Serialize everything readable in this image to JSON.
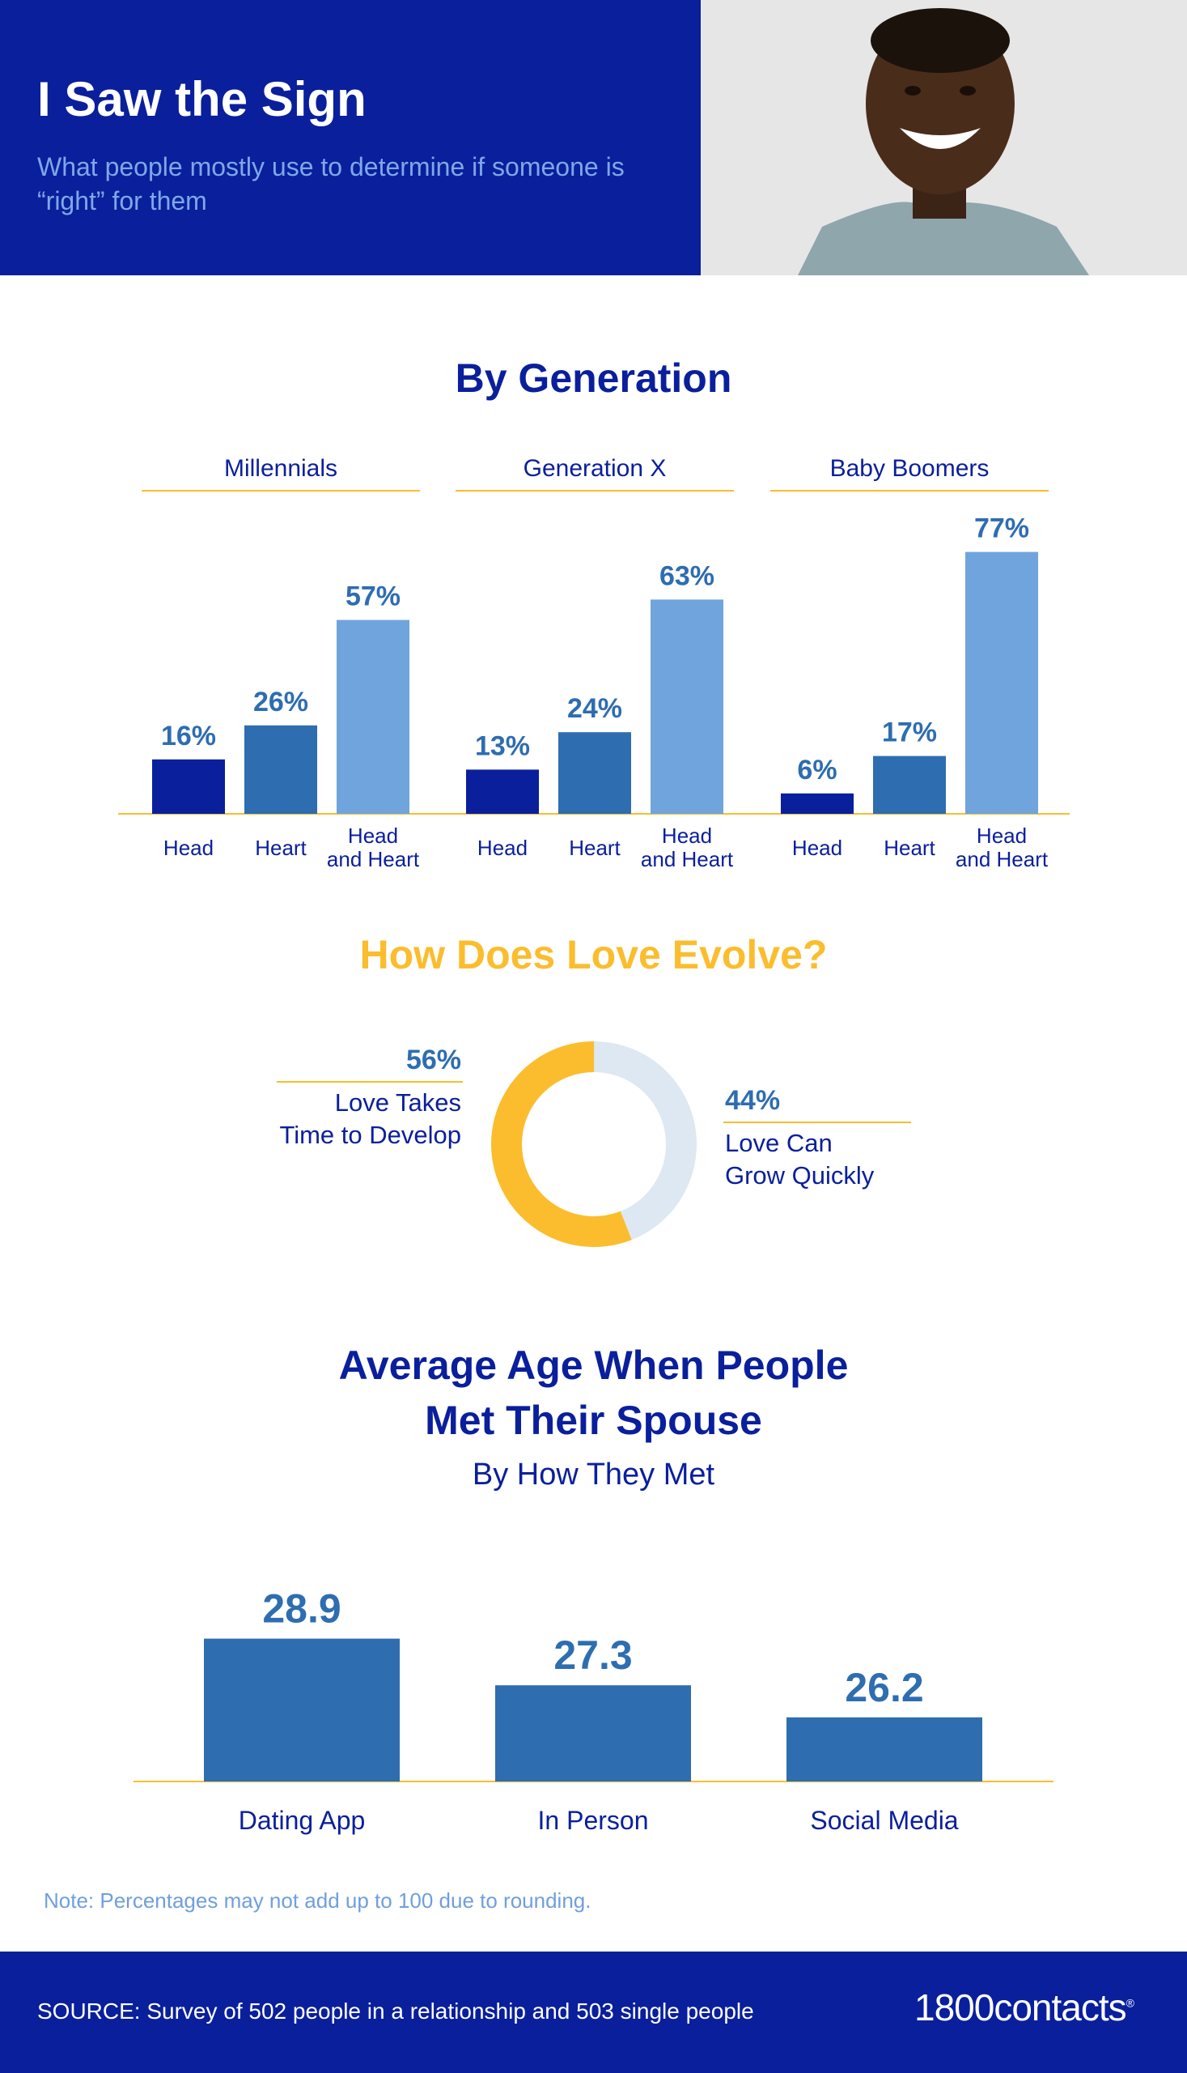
{
  "header": {
    "title": "I Saw the Sign",
    "subtitle": "What people mostly use to determine if someone is “right” for them"
  },
  "colors": {
    "navy": "#0a1f9c",
    "mid_blue": "#2e6db0",
    "light_blue": "#6fa5dc",
    "gold": "#fbbd2e",
    "pale_blue": "#dde8f2"
  },
  "chart_data": [
    {
      "type": "bar",
      "title": "By Generation",
      "groups": [
        {
          "name": "Millennials",
          "categories": [
            "Head",
            "Heart",
            "Head\nand Heart"
          ],
          "values": [
            16,
            26,
            57
          ],
          "labels": [
            "16%",
            "26%",
            "57%"
          ]
        },
        {
          "name": "Generation X",
          "categories": [
            "Head",
            "Heart",
            "Head\nand Heart"
          ],
          "values": [
            13,
            24,
            63
          ],
          "labels": [
            "13%",
            "24%",
            "63%"
          ]
        },
        {
          "name": "Baby Boomers",
          "categories": [
            "Head",
            "Heart",
            "Head\nand Heart"
          ],
          "values": [
            6,
            17,
            77
          ],
          "labels": [
            "6%",
            "17%",
            "77%"
          ]
        }
      ],
      "ylim": [
        0,
        100
      ]
    },
    {
      "type": "pie",
      "title": "How Does Love Evolve?",
      "slices": [
        {
          "label_line1": "Love Takes",
          "label_line2": "Time to Develop",
          "value": 56,
          "value_label": "56%",
          "color": "#fbbd2e"
        },
        {
          "label_line1": "Love Can",
          "label_line2": "Grow Quickly",
          "value": 44,
          "value_label": "44%",
          "color": "#dde8f2"
        }
      ]
    },
    {
      "type": "bar",
      "title": "Average Age When People Met Their Spouse",
      "subtitle": "By How They Met",
      "categories": [
        "Dating App",
        "In Person",
        "Social Media"
      ],
      "values": [
        28.9,
        27.3,
        26.2
      ],
      "labels": [
        "28.9",
        "27.3",
        "26.2"
      ]
    }
  ],
  "age_title_line1": "Average Age When People",
  "age_title_line2": "Met Their Spouse",
  "note": "Note: Percentages may not add up to 100 due to rounding.",
  "footer": {
    "source": "SOURCE: Survey of 502 people in a relationship and 503 single people",
    "brand": "1800contacts",
    "brand_mark": "®"
  }
}
